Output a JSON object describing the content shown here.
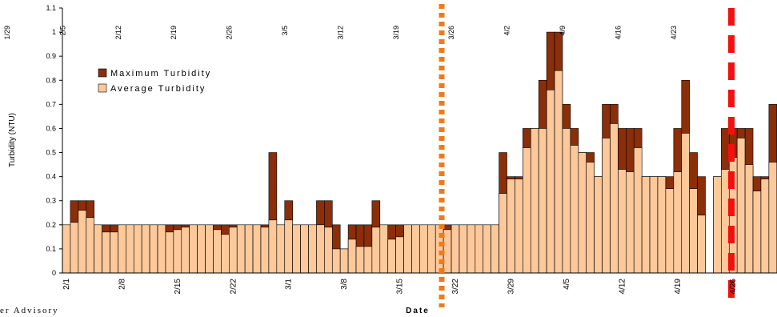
{
  "chart_data": {
    "type": "bar",
    "y_label": "Turbidity (NTU)",
    "x_label": "Date",
    "footer_text": "er Advisory",
    "top_labels": [
      "1/29",
      "2/5",
      "2/12",
      "2/19",
      "2/26",
      "3/5",
      "3/12",
      "3/19",
      "3/26",
      "4/2",
      "4/9",
      "4/16",
      "4/23"
    ],
    "categories": [
      "2/1",
      null,
      null,
      null,
      null,
      null,
      null,
      "2/8",
      null,
      null,
      null,
      null,
      null,
      null,
      "2/15",
      null,
      null,
      null,
      null,
      null,
      null,
      "2/22",
      null,
      null,
      null,
      null,
      null,
      null,
      "3/1",
      null,
      null,
      null,
      null,
      null,
      null,
      "3/8",
      null,
      null,
      null,
      null,
      null,
      null,
      "3/15",
      null,
      null,
      null,
      null,
      null,
      null,
      "3/22",
      null,
      null,
      null,
      null,
      null,
      null,
      "3/29",
      null,
      null,
      null,
      null,
      null,
      null,
      "4/5",
      null,
      null,
      null,
      null,
      null,
      null,
      "4/12",
      null,
      null,
      null,
      null,
      null,
      null,
      "4/19",
      null,
      null,
      null,
      null,
      null,
      null,
      "4/26",
      null,
      null,
      null,
      null,
      null
    ],
    "series": [
      {
        "name": "Maximum Turbidity",
        "color": "#8b2e0a",
        "values": [
          0.2,
          0.3,
          0.3,
          0.3,
          0.2,
          0.2,
          0.2,
          0.2,
          0.2,
          0.2,
          0.2,
          0.2,
          0.2,
          0.2,
          0.2,
          0.2,
          0.2,
          0.2,
          0.2,
          0.2,
          0.2,
          0.2,
          0.2,
          0.2,
          0.2,
          0.2,
          0.5,
          0.2,
          0.3,
          0.2,
          0.2,
          0.2,
          0.3,
          0.3,
          0.2,
          0.1,
          0.2,
          0.2,
          0.2,
          0.3,
          0.2,
          0.2,
          0.2,
          0.2,
          0.2,
          0.2,
          0.2,
          0.2,
          0.2,
          0.2,
          0.2,
          0.2,
          0.2,
          0.2,
          0.2,
          0.5,
          0.4,
          0.4,
          0.6,
          0.6,
          0.8,
          1,
          1,
          0.7,
          0.6,
          0.5,
          0.5,
          0.4,
          0.7,
          0.7,
          0.6,
          0.6,
          0.6,
          0.4,
          0.4,
          0.4,
          0.4,
          0.6,
          0.8,
          0.5,
          0.4,
          null,
          0.4,
          0.6,
          0.6,
          0.6,
          0.6,
          0.4,
          0.4,
          0.7
        ]
      },
      {
        "name": "Average Turbidity",
        "color": "#fdc99b",
        "values": [
          0.2,
          0.21,
          0.26,
          0.23,
          0.2,
          0.17,
          0.17,
          0.2,
          0.2,
          0.2,
          0.2,
          0.2,
          0.2,
          0.17,
          0.18,
          0.19,
          0.2,
          0.2,
          0.2,
          0.18,
          0.16,
          0.19,
          0.2,
          0.2,
          0.2,
          0.19,
          0.22,
          0.2,
          0.22,
          0.2,
          0.2,
          0.2,
          0.2,
          0.19,
          0.1,
          0.1,
          0.14,
          0.11,
          0.11,
          0.19,
          0.2,
          0.14,
          0.15,
          0.2,
          0.2,
          0.2,
          0.2,
          0.2,
          0.18,
          0.2,
          0.2,
          0.2,
          0.2,
          0.2,
          0.2,
          0.33,
          0.39,
          0.39,
          0.52,
          0.6,
          0.6,
          0.76,
          0.84,
          0.6,
          0.53,
          0.5,
          0.46,
          0.4,
          0.56,
          0.62,
          0.43,
          0.42,
          0.52,
          0.4,
          0.4,
          0.4,
          0.35,
          0.42,
          0.58,
          0.35,
          0.24,
          null,
          0.4,
          0.43,
          0.48,
          0.56,
          0.45,
          0.34,
          0.39,
          0.46
        ]
      }
    ],
    "ylim": [
      0,
      1.1
    ],
    "yticks": [
      0,
      0.1,
      0.2,
      0.3,
      0.4,
      0.5,
      0.6,
      0.7,
      0.8,
      0.9,
      1,
      1.1
    ]
  }
}
